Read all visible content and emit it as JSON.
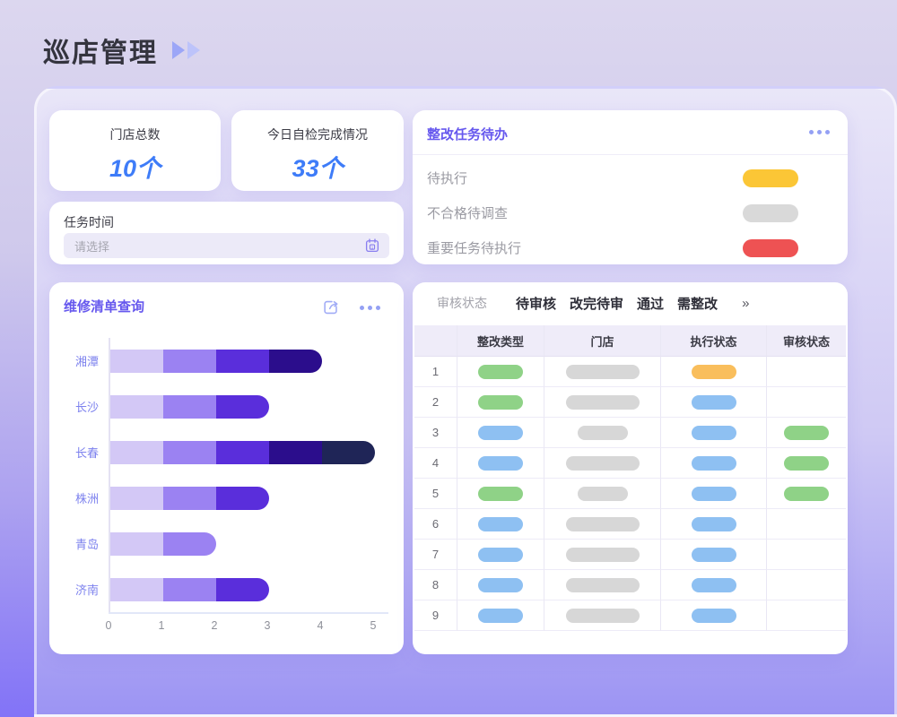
{
  "page": {
    "title": "巡店管理"
  },
  "icons": {
    "title_arrows": "fast-forward-icon",
    "calendar": "calendar-icon",
    "share": "share-icon",
    "more": "ellipsis-icon",
    "tabs_more": "double-chevron-right-icon"
  },
  "stats": [
    {
      "label": "门店总数",
      "value": "10个"
    },
    {
      "label": "今日自检完成情况",
      "value": "33个"
    }
  ],
  "task_time": {
    "label": "任务时间",
    "placeholder": "请选择"
  },
  "todo": {
    "title": "整改任务待办",
    "items": [
      {
        "label": "待执行",
        "color": "#FBC636"
      },
      {
        "label": "不合格待调查",
        "color": "#D9D9D9"
      },
      {
        "label": "重要任务待执行",
        "color": "#EE5253"
      }
    ]
  },
  "repair": {
    "title": "维修清单查询"
  },
  "chart_data": {
    "type": "bar",
    "orientation": "horizontal",
    "stacked": true,
    "title": "维修清单查询",
    "categories": [
      "湘潭",
      "长沙",
      "长春",
      "株洲",
      "青岛",
      "济南"
    ],
    "series": [
      {
        "name": "segment-1",
        "color": "#D3C8F6",
        "values": [
          1,
          1,
          1,
          1,
          1,
          1
        ]
      },
      {
        "name": "segment-2",
        "color": "#9B82F2",
        "values": [
          1,
          1,
          1,
          1,
          1,
          1
        ]
      },
      {
        "name": "segment-3",
        "color": "#5A2EDB",
        "values": [
          1,
          1,
          1,
          1,
          0,
          1
        ]
      },
      {
        "name": "segment-4",
        "color": "#2B0D8C",
        "values": [
          1,
          0,
          1,
          0,
          0,
          0
        ]
      },
      {
        "name": "segment-5",
        "color": "#1F2557",
        "values": [
          0,
          0,
          1,
          0,
          0,
          0
        ]
      }
    ],
    "totals": [
      4,
      3,
      5,
      3,
      2,
      3
    ],
    "xlabel": "",
    "ylabel": "",
    "xlim": [
      0,
      5
    ],
    "xticks": [
      0,
      1,
      2,
      3,
      4,
      5
    ],
    "grid": false,
    "legend": false
  },
  "review_table": {
    "filter_label": "审核状态",
    "tabs": [
      "待审核",
      "改完待审",
      "通过",
      "需整改"
    ],
    "more": "»",
    "columns": [
      "整改类型",
      "门店",
      "执行状态",
      "审核状态"
    ],
    "pill_colors": {
      "green": "#8FD287",
      "blue": "#8EC0F2",
      "orange": "#F9BE5C",
      "gray": "#D7D7D7"
    },
    "rows": [
      {
        "num": "1",
        "type": "green",
        "store": "wide",
        "exec": "orange",
        "review": null
      },
      {
        "num": "2",
        "type": "green",
        "store": "wide",
        "exec": "blue",
        "review": null
      },
      {
        "num": "3",
        "type": "blue",
        "store": "narrow",
        "exec": "blue",
        "review": "green"
      },
      {
        "num": "4",
        "type": "blue",
        "store": "wide",
        "exec": "blue",
        "review": "green"
      },
      {
        "num": "5",
        "type": "green",
        "store": "narrow",
        "exec": "blue",
        "review": "green"
      },
      {
        "num": "6",
        "type": "blue",
        "store": "wide",
        "exec": "blue",
        "review": null
      },
      {
        "num": "7",
        "type": "blue",
        "store": "wide",
        "exec": "blue",
        "review": null
      },
      {
        "num": "8",
        "type": "blue",
        "store": "wide",
        "exec": "blue",
        "review": null
      },
      {
        "num": "9",
        "type": "blue",
        "store": "wide",
        "exec": "blue",
        "review": null
      }
    ]
  }
}
